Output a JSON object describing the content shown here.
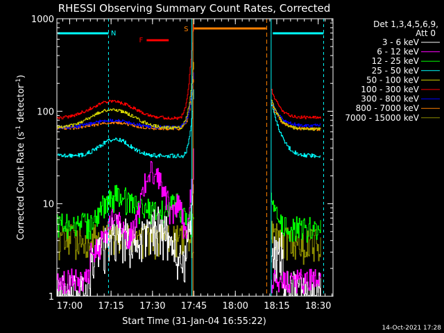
{
  "chart_data": {
    "type": "line",
    "title": "RHESSI Observing Summary Count Rates, Corrected",
    "xlabel": "Start Time (31-Jan-04 16:55:22)",
    "ylabel_main": "Corrected Count Rate (s",
    "ylabel_sup1": "-1",
    "ylabel_mid": " detector",
    "ylabel_sup2": "-1",
    "ylabel_end": ")",
    "y_scale": "log",
    "ylim": [
      1,
      1000
    ],
    "xlim_min": [
      0,
      100
    ],
    "x_unit": "minutes after 16:55:22",
    "y_ticks": [
      {
        "value": 1,
        "label": "1"
      },
      {
        "value": 10,
        "label": "10"
      },
      {
        "value": 100,
        "label": "100"
      },
      {
        "value": 1000,
        "label": "1000"
      }
    ],
    "x_ticks": [
      {
        "value": 4.63,
        "label": "17:00"
      },
      {
        "value": 19.63,
        "label": "17:15"
      },
      {
        "value": 34.63,
        "label": "17:30"
      },
      {
        "value": 49.63,
        "label": "17:45"
      },
      {
        "value": 64.63,
        "label": "18:00"
      },
      {
        "value": 79.63,
        "label": "18:15"
      },
      {
        "value": 94.63,
        "label": "18:30"
      }
    ],
    "detectors": "Det 1,3,4,5,6,9,",
    "attenuator": "Att 0",
    "legend_position": "right",
    "series": [
      {
        "name": "3 - 6 keV",
        "color": "#ffffff"
      },
      {
        "name": "6 - 12 keV",
        "color": "#ff00ff"
      },
      {
        "name": "12 - 25 keV",
        "color": "#00ff00"
      },
      {
        "name": "25 - 50 keV",
        "color": "#00ffff"
      },
      {
        "name": "50 - 100 keV",
        "color": "#d2d200"
      },
      {
        "name": "100 - 300 keV",
        "color": "#ff0000"
      },
      {
        "name": "300 - 800 keV",
        "color": "#0000ff"
      },
      {
        "name": "800 - 7000 keV",
        "color": "#ff8000"
      },
      {
        "name": "7000 - 15000 keV",
        "color": "#8c8c00"
      }
    ],
    "flags": [
      {
        "label": "N",
        "color": "#00ffff"
      },
      {
        "label": "F",
        "color": "#ff0000"
      },
      {
        "label": "S",
        "color": "#ff8000"
      }
    ],
    "timestamp": "14-Oct-2021 17:28"
  }
}
